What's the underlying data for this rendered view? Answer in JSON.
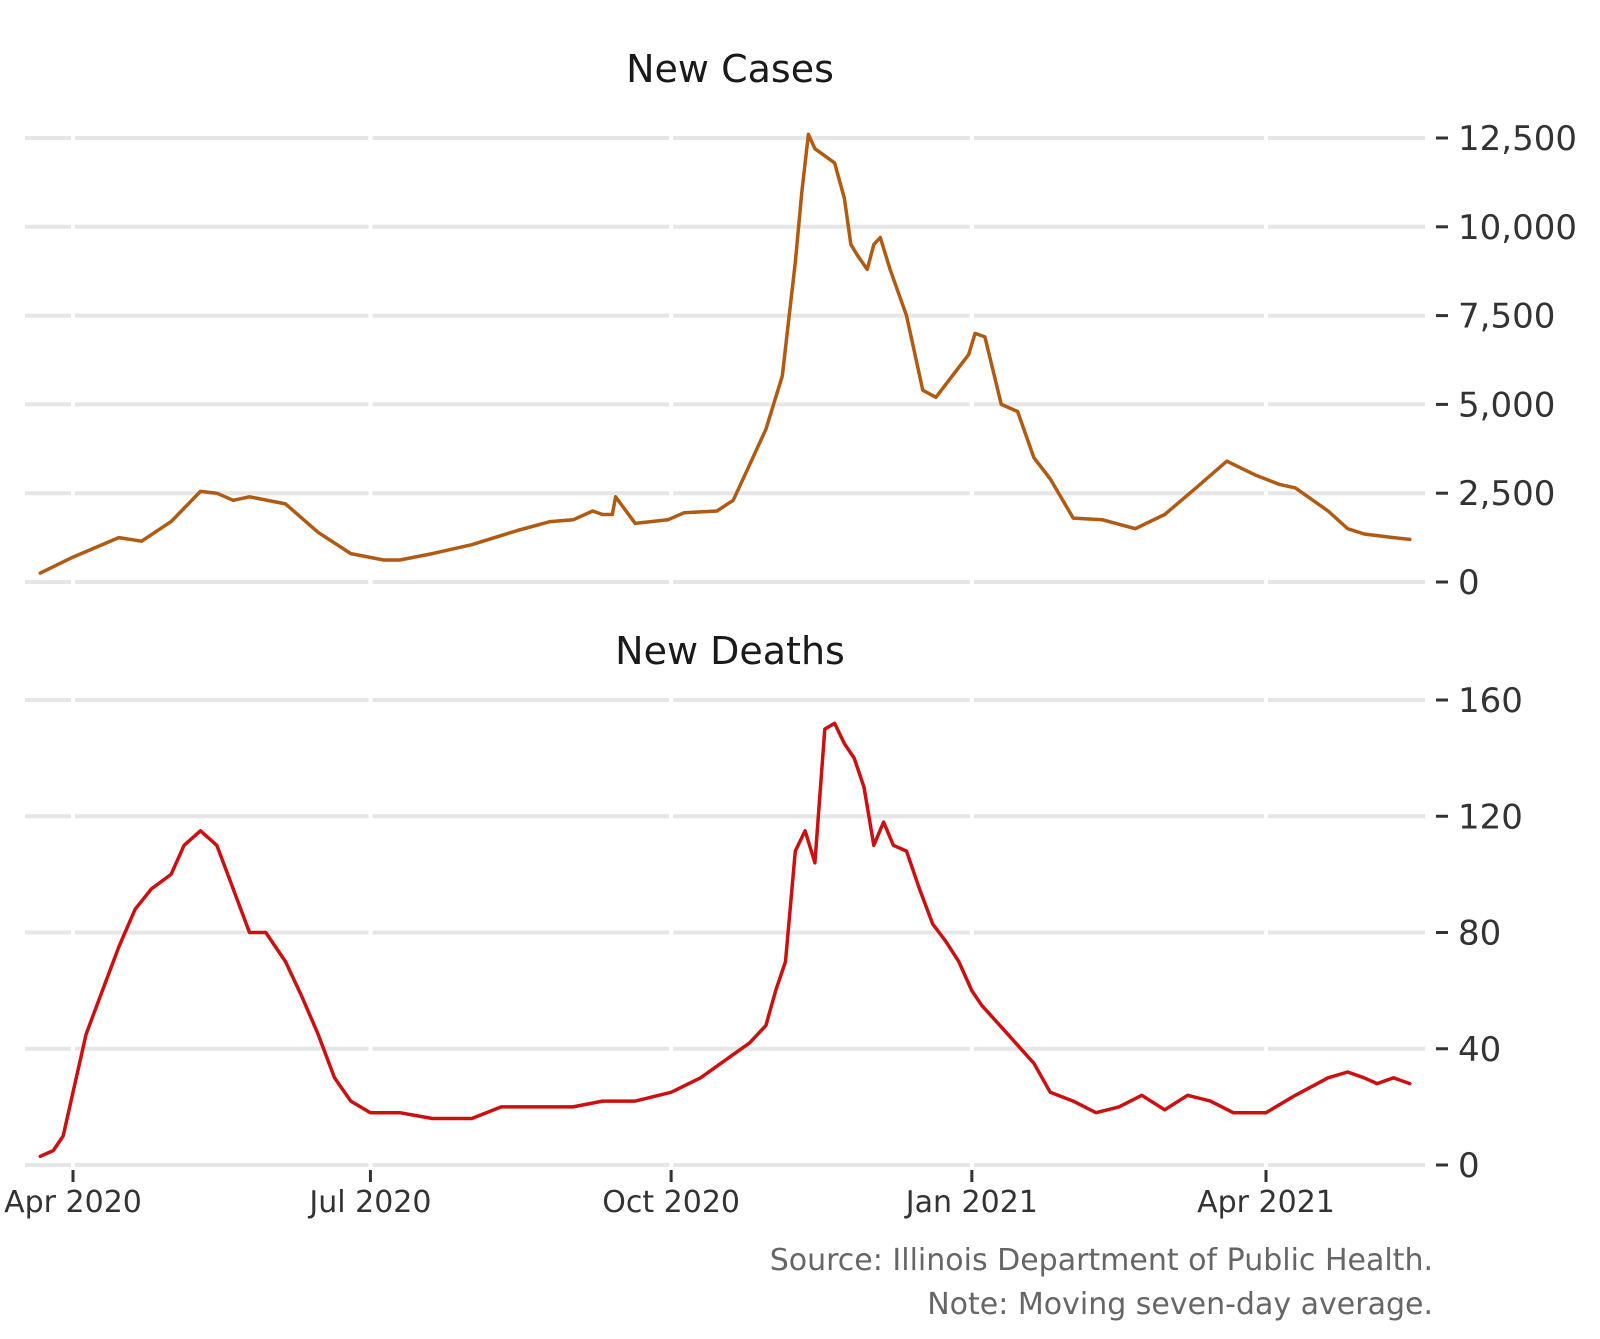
{
  "chart_data": [
    {
      "type": "line",
      "title": "New Cases",
      "xlabel": "",
      "ylabel": "",
      "ylim": [
        0,
        12500
      ],
      "yticks": [
        0,
        2500,
        5000,
        7500,
        10000,
        12500
      ],
      "ytick_labels": [
        "0",
        "2,500",
        "5,000",
        "7,500",
        "10,000",
        "12,500"
      ],
      "grid": true,
      "y_axis_side": "right",
      "series": [
        {
          "color": "#b05a12",
          "x": [
            "2020-03-22",
            "2020-04-01",
            "2020-04-15",
            "2020-04-22",
            "2020-05-01",
            "2020-05-10",
            "2020-05-15",
            "2020-05-20",
            "2020-05-25",
            "2020-06-05",
            "2020-06-15",
            "2020-06-25",
            "2020-07-05",
            "2020-07-10",
            "2020-07-20",
            "2020-08-01",
            "2020-08-15",
            "2020-08-25",
            "2020-09-01",
            "2020-09-07",
            "2020-09-10",
            "2020-09-13",
            "2020-09-14",
            "2020-09-20",
            "2020-09-30",
            "2020-10-05",
            "2020-10-15",
            "2020-10-20",
            "2020-10-25",
            "2020-10-30",
            "2020-11-04",
            "2020-11-08",
            "2020-11-10",
            "2020-11-12",
            "2020-11-14",
            "2020-11-17",
            "2020-11-20",
            "2020-11-23",
            "2020-11-25",
            "2020-11-27",
            "2020-11-30",
            "2020-12-02",
            "2020-12-04",
            "2020-12-07",
            "2020-12-12",
            "2020-12-17",
            "2020-12-21",
            "2020-12-26",
            "2020-12-31",
            "2021-01-02",
            "2021-01-05",
            "2021-01-10",
            "2021-01-15",
            "2021-01-20",
            "2021-01-25",
            "2021-02-01",
            "2021-02-10",
            "2021-02-20",
            "2021-03-01",
            "2021-03-10",
            "2021-03-20",
            "2021-03-29",
            "2021-04-05",
            "2021-04-10",
            "2021-04-20",
            "2021-04-26",
            "2021-05-01",
            "2021-05-10",
            "2021-05-15"
          ],
          "values": [
            250,
            700,
            1250,
            1150,
            1700,
            2550,
            2500,
            2300,
            2400,
            2200,
            1400,
            800,
            620,
            620,
            800,
            1050,
            1450,
            1700,
            1750,
            2000,
            1900,
            1900,
            2400,
            1650,
            1750,
            1950,
            2000,
            2300,
            3300,
            4300,
            5800,
            9000,
            11000,
            12600,
            12200,
            12000,
            11800,
            10800,
            9500,
            9200,
            8800,
            9500,
            9700,
            8800,
            7500,
            5400,
            5200,
            5800,
            6400,
            7000,
            6900,
            5000,
            4800,
            3500,
            2900,
            1800,
            1750,
            1500,
            1900,
            2600,
            3400,
            3000,
            2750,
            2650,
            2000,
            1500,
            1350,
            1250,
            1200
          ]
        }
      ]
    },
    {
      "type": "line",
      "title": "New Deaths",
      "xlabel": "",
      "ylabel": "",
      "ylim": [
        0,
        160
      ],
      "yticks": [
        0,
        40,
        80,
        120,
        160
      ],
      "ytick_labels": [
        "0",
        "40",
        "80",
        "120",
        "160"
      ],
      "grid": true,
      "y_axis_side": "right",
      "x_axis": {
        "ticks": [
          "2020-04-01",
          "2020-07-01",
          "2020-10-01",
          "2021-01-01",
          "2021-04-01"
        ],
        "tick_labels": [
          "Apr 2020",
          "Jul 2020",
          "Oct 2020",
          "Jan 2021",
          "Apr 2021"
        ]
      },
      "series": [
        {
          "color": "#cc1010",
          "x": [
            "2020-03-22",
            "2020-03-26",
            "2020-03-29",
            "2020-04-01",
            "2020-04-05",
            "2020-04-10",
            "2020-04-15",
            "2020-04-20",
            "2020-04-25",
            "2020-05-01",
            "2020-05-05",
            "2020-05-10",
            "2020-05-15",
            "2020-05-20",
            "2020-05-25",
            "2020-05-30",
            "2020-06-05",
            "2020-06-10",
            "2020-06-15",
            "2020-06-20",
            "2020-06-25",
            "2020-07-01",
            "2020-07-05",
            "2020-07-10",
            "2020-07-15",
            "2020-07-20",
            "2020-07-25",
            "2020-08-01",
            "2020-08-10",
            "2020-08-20",
            "2020-09-01",
            "2020-09-10",
            "2020-09-20",
            "2020-10-01",
            "2020-10-10",
            "2020-10-20",
            "2020-10-25",
            "2020-10-30",
            "2020-11-02",
            "2020-11-05",
            "2020-11-08",
            "2020-11-11",
            "2020-11-14",
            "2020-11-17",
            "2020-11-20",
            "2020-11-23",
            "2020-11-26",
            "2020-11-29",
            "2020-12-02",
            "2020-12-05",
            "2020-12-08",
            "2020-12-12",
            "2020-12-16",
            "2020-12-20",
            "2020-12-24",
            "2020-12-28",
            "2021-01-01",
            "2021-01-04",
            "2021-01-08",
            "2021-01-12",
            "2021-01-16",
            "2021-01-20",
            "2021-01-25",
            "2021-02-01",
            "2021-02-08",
            "2021-02-15",
            "2021-02-22",
            "2021-03-01",
            "2021-03-08",
            "2021-03-15",
            "2021-03-22",
            "2021-04-01",
            "2021-04-10",
            "2021-04-20",
            "2021-04-26",
            "2021-05-01",
            "2021-05-05",
            "2021-05-10",
            "2021-05-15"
          ],
          "values": [
            3,
            5,
            10,
            25,
            45,
            60,
            75,
            88,
            95,
            100,
            110,
            115,
            110,
            95,
            80,
            80,
            70,
            58,
            45,
            30,
            22,
            18,
            18,
            18,
            17,
            16,
            16,
            16,
            20,
            20,
            20,
            22,
            22,
            25,
            30,
            38,
            42,
            48,
            60,
            70,
            108,
            115,
            104,
            150,
            152,
            145,
            140,
            130,
            110,
            118,
            110,
            108,
            95,
            83,
            77,
            70,
            60,
            55,
            50,
            45,
            40,
            35,
            25,
            22,
            18,
            20,
            24,
            19,
            24,
            22,
            18,
            18,
            24,
            30,
            32,
            30,
            28,
            30,
            28
          ]
        }
      ]
    }
  ],
  "note": {
    "line1": "Source: Illinois Department of Public Health.",
    "line2": "Note: Moving seven-day average."
  }
}
